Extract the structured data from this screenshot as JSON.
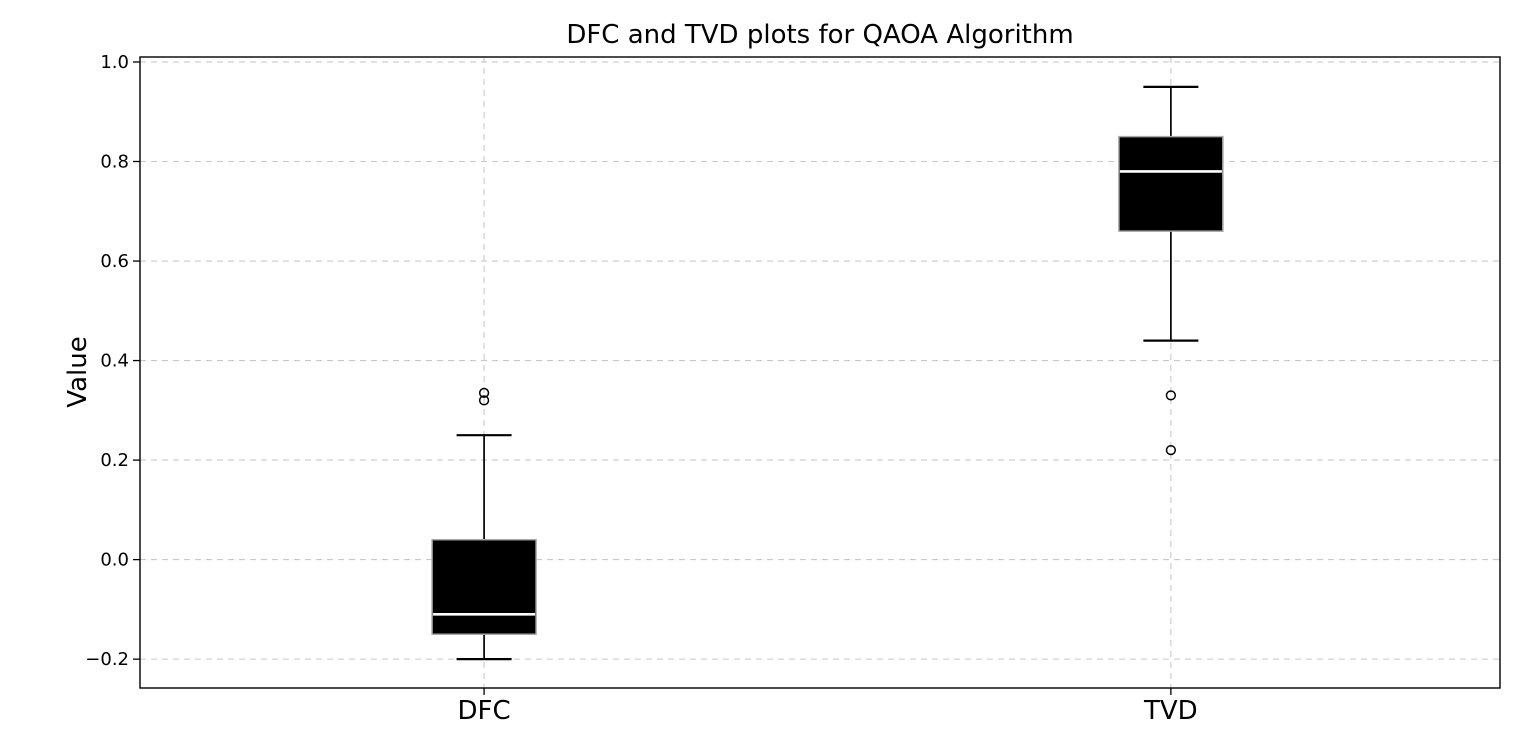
{
  "figure": {
    "background": "#ffffff"
  },
  "chart_data": {
    "type": "box",
    "title": "DFC and TVD plots for QAOA Algorithm",
    "xlabel": "",
    "ylabel": "Value",
    "categories": [
      "DFC",
      "TVD"
    ],
    "series": [
      {
        "name": "DFC",
        "whisker_low": -0.2,
        "q1": -0.15,
        "median": -0.11,
        "q3": 0.04,
        "whisker_high": 0.25,
        "outliers": [
          0.335,
          0.32
        ]
      },
      {
        "name": "TVD",
        "whisker_low": 0.44,
        "q1": 0.66,
        "median": 0.78,
        "q3": 0.85,
        "whisker_high": 0.95,
        "outliers": [
          0.33,
          0.22
        ]
      }
    ],
    "yticks": [
      1.0,
      0.8,
      0.6,
      0.4,
      0.2,
      0.0,
      -0.2
    ],
    "ylim": [
      -0.258,
      1.01
    ],
    "grid": {
      "horizontal": true,
      "vertical": true,
      "style": "dashed",
      "color": "#c9c9c9"
    },
    "legend": "none",
    "colors": {
      "box_fill": "#000000",
      "box_edge": "#a8a8a8",
      "median": "#ffffff",
      "whisker": "#000000",
      "cap": "#000000",
      "outlier_edge": "#000000",
      "spine": "#000000",
      "text": "#000000"
    }
  }
}
